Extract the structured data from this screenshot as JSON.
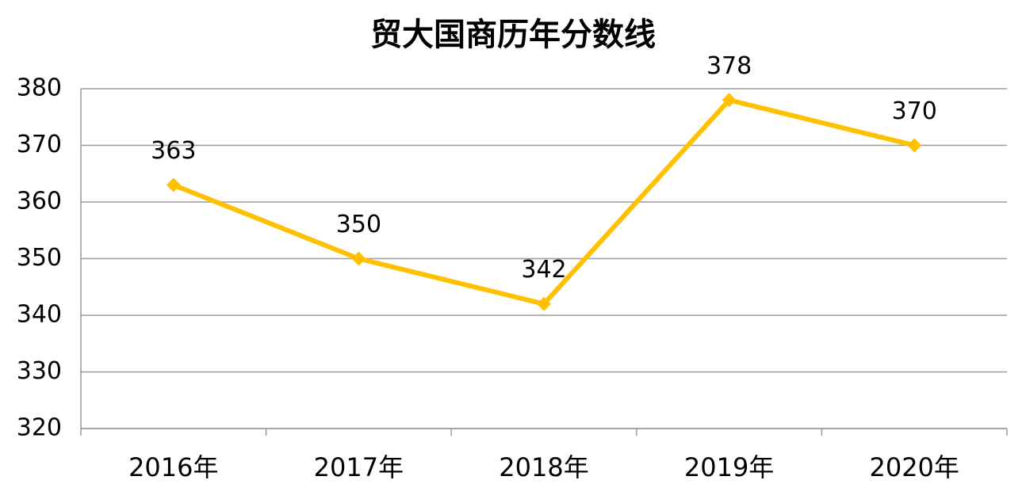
{
  "chart_data": {
    "type": "line",
    "title": "贸大国商历年分数线",
    "categories": [
      "2016年",
      "2017年",
      "2018年",
      "2019年",
      "2020年"
    ],
    "series": [
      {
        "color": "#FFC000",
        "values": [
          363,
          350,
          342,
          378,
          370
        ]
      }
    ],
    "ylim": [
      320,
      380
    ],
    "yticks": [
      320,
      330,
      340,
      350,
      360,
      370,
      380
    ],
    "grid": true
  }
}
